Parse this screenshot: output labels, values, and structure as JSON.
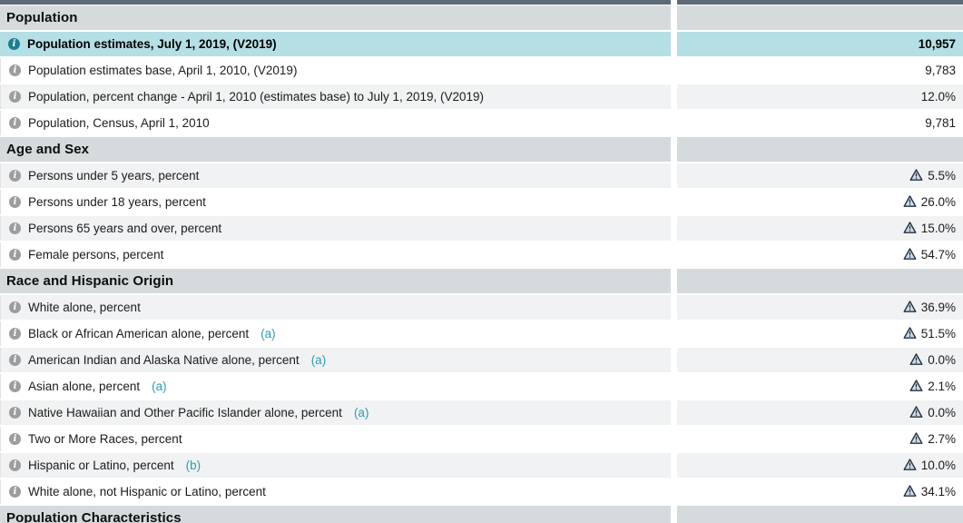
{
  "colors": {
    "topbar_bg": "#5b6a74",
    "section_bg": "#d5dadd",
    "row_alt_bg": "#f1f2f3",
    "highlight_bg": "#b4dfe5",
    "info_icon_bg": "#9d9d9d",
    "info_icon_hl_bg": "#1e7e90",
    "link_color": "#279eb0",
    "flag_fill": "#cfdcec",
    "flag_stroke": "#22303e"
  },
  "icons": {
    "info": "info-icon",
    "flag": "warning-triangle-icon"
  },
  "sections": [
    {
      "title": "Population",
      "rows": [
        {
          "label": "Population estimates, July 1, 2019, (V2019)",
          "footnote": "",
          "value": "10,957",
          "flag": false,
          "highlighted": true
        },
        {
          "label": "Population estimates base, April 1, 2010, (V2019)",
          "footnote": "",
          "value": "9,783",
          "flag": false,
          "highlighted": false
        },
        {
          "label": "Population, percent change - April 1, 2010 (estimates base) to July 1, 2019, (V2019)",
          "footnote": "",
          "value": "12.0%",
          "flag": false,
          "highlighted": false
        },
        {
          "label": "Population, Census, April 1, 2010",
          "footnote": "",
          "value": "9,781",
          "flag": false,
          "highlighted": false
        }
      ]
    },
    {
      "title": "Age and Sex",
      "rows": [
        {
          "label": "Persons under 5 years, percent",
          "footnote": "",
          "value": "5.5%",
          "flag": true,
          "highlighted": false
        },
        {
          "label": "Persons under 18 years, percent",
          "footnote": "",
          "value": "26.0%",
          "flag": true,
          "highlighted": false
        },
        {
          "label": "Persons 65 years and over, percent",
          "footnote": "",
          "value": "15.0%",
          "flag": true,
          "highlighted": false
        },
        {
          "label": "Female persons, percent",
          "footnote": "",
          "value": "54.7%",
          "flag": true,
          "highlighted": false
        }
      ]
    },
    {
      "title": "Race and Hispanic Origin",
      "rows": [
        {
          "label": "White alone, percent",
          "footnote": "",
          "value": "36.9%",
          "flag": true,
          "highlighted": false
        },
        {
          "label": "Black or African American alone, percent",
          "footnote": "(a)",
          "value": "51.5%",
          "flag": true,
          "highlighted": false
        },
        {
          "label": "American Indian and Alaska Native alone, percent",
          "footnote": "(a)",
          "value": "0.0%",
          "flag": true,
          "highlighted": false
        },
        {
          "label": "Asian alone, percent",
          "footnote": "(a)",
          "value": "2.1%",
          "flag": true,
          "highlighted": false
        },
        {
          "label": "Native Hawaiian and Other Pacific Islander alone, percent",
          "footnote": "(a)",
          "value": "0.0%",
          "flag": true,
          "highlighted": false
        },
        {
          "label": "Two or More Races, percent",
          "footnote": "",
          "value": "2.7%",
          "flag": true,
          "highlighted": false
        },
        {
          "label": "Hispanic or Latino, percent",
          "footnote": "(b)",
          "value": "10.0%",
          "flag": true,
          "highlighted": false
        },
        {
          "label": "White alone, not Hispanic or Latino, percent",
          "footnote": "",
          "value": "34.1%",
          "flag": true,
          "highlighted": false
        }
      ]
    },
    {
      "title": "Population Characteristics",
      "rows": []
    }
  ]
}
